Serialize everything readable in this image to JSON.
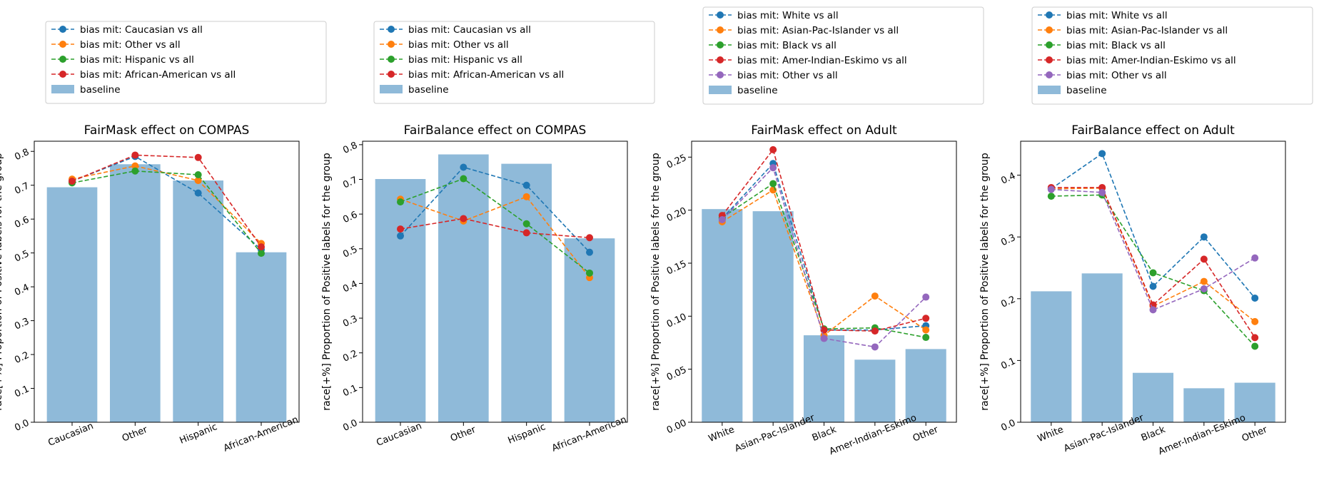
{
  "chart_data": [
    {
      "type": "bar",
      "title": "FairMask effect on COMPAS",
      "xlabel": "",
      "ylabel": "race[+%] Proportion of Positive labels for the group",
      "categories": [
        "Caucasian",
        "Other",
        "Hispanic",
        "African-American"
      ],
      "ylim": [
        0,
        0.83
      ],
      "yticks": [
        "0.0",
        "0.1",
        "0.2",
        "0.3",
        "0.4",
        "0.5",
        "0.6",
        "0.7",
        "0.8"
      ],
      "baseline": {
        "name": "baseline",
        "color": "#8fbad9",
        "values": [
          0.694,
          0.762,
          0.714,
          0.502
        ]
      },
      "series": [
        {
          "name": "bias mit: Caucasian vs all",
          "color": "#1f77b4",
          "values": [
            0.712,
            0.785,
            0.677,
            0.51
          ]
        },
        {
          "name": "bias mit: Other vs all",
          "color": "#ff7f0e",
          "values": [
            0.718,
            0.757,
            0.714,
            0.528
          ]
        },
        {
          "name": "bias mit: Hispanic vs all",
          "color": "#2ca02c",
          "values": [
            0.707,
            0.742,
            0.731,
            0.499
          ]
        },
        {
          "name": "bias mit: African-American vs all",
          "color": "#d62728",
          "values": [
            0.712,
            0.789,
            0.782,
            0.518
          ]
        }
      ],
      "legend_position": "above"
    },
    {
      "type": "bar",
      "title": "FairBalance effect on COMPAS",
      "xlabel": "",
      "ylabel": "race[+%] Proportion of Positive labels for the group",
      "categories": [
        "Caucasian",
        "Other",
        "Hispanic",
        "African-American"
      ],
      "ylim": [
        0,
        0.81
      ],
      "yticks": [
        "0.0",
        "0.1",
        "0.2",
        "0.3",
        "0.4",
        "0.5",
        "0.6",
        "0.7",
        "0.8"
      ],
      "baseline": {
        "name": "baseline",
        "color": "#8fbad9",
        "values": [
          0.701,
          0.772,
          0.745,
          0.53
        ]
      },
      "series": [
        {
          "name": "bias mit: Caucasian vs all",
          "color": "#1f77b4",
          "values": [
            0.537,
            0.735,
            0.683,
            0.49
          ]
        },
        {
          "name": "bias mit: Other vs all",
          "color": "#ff7f0e",
          "values": [
            0.643,
            0.58,
            0.65,
            0.417
          ]
        },
        {
          "name": "bias mit: Hispanic vs all",
          "color": "#2ca02c",
          "values": [
            0.635,
            0.702,
            0.572,
            0.43
          ]
        },
        {
          "name": "bias mit: African-American vs all",
          "color": "#d62728",
          "values": [
            0.557,
            0.587,
            0.546,
            0.532
          ]
        }
      ],
      "legend_position": "above"
    },
    {
      "type": "bar",
      "title": "FairMask effect on Adult",
      "xlabel": "",
      "ylabel": "race[+%] Proportion of Positive labels for the group",
      "categories": [
        "White",
        "Asian-Pac-Islander",
        "Black",
        "Amer-Indian-Eskimo",
        "Other"
      ],
      "ylim": [
        0,
        0.265
      ],
      "yticks": [
        "0.00",
        "0.05",
        "0.10",
        "0.15",
        "0.20",
        "0.25"
      ],
      "baseline": {
        "name": "baseline",
        "color": "#8fbad9",
        "values": [
          0.201,
          0.199,
          0.082,
          0.059,
          0.069
        ]
      },
      "series": [
        {
          "name": "bias mit: White vs all",
          "color": "#1f77b4",
          "values": [
            0.192,
            0.244,
            0.087,
            0.087,
            0.091
          ]
        },
        {
          "name": "bias mit: Asian-Pac-Islander vs all",
          "color": "#ff7f0e",
          "values": [
            0.189,
            0.219,
            0.082,
            0.119,
            0.087
          ]
        },
        {
          "name": "bias mit: Black vs all",
          "color": "#2ca02c",
          "values": [
            0.193,
            0.225,
            0.088,
            0.089,
            0.08
          ]
        },
        {
          "name": "bias mit: Amer-Indian-Eskimo vs all",
          "color": "#d62728",
          "values": [
            0.195,
            0.257,
            0.087,
            0.086,
            0.098
          ]
        },
        {
          "name": "bias mit: Other vs all",
          "color": "#9467bd",
          "values": [
            0.191,
            0.24,
            0.079,
            0.071,
            0.118
          ]
        }
      ],
      "legend_position": "above"
    },
    {
      "type": "bar",
      "title": "FairBalance effect on Adult",
      "xlabel": "",
      "ylabel": "race[+%] Proportion of Positive labels for the group",
      "categories": [
        "White",
        "Asian-Pac-Islander",
        "Black",
        "Amer-Indian-Eskimo",
        "Other"
      ],
      "ylim": [
        0,
        0.455
      ],
      "yticks": [
        "0.0",
        "0.1",
        "0.2",
        "0.3",
        "0.4"
      ],
      "baseline": {
        "name": "baseline",
        "color": "#8fbad9",
        "values": [
          0.212,
          0.241,
          0.08,
          0.055,
          0.064
        ]
      },
      "series": [
        {
          "name": "bias mit: White vs all",
          "color": "#1f77b4",
          "values": [
            0.378,
            0.435,
            0.22,
            0.3,
            0.201
          ]
        },
        {
          "name": "bias mit: Asian-Pac-Islander vs all",
          "color": "#ff7f0e",
          "values": [
            0.378,
            0.379,
            0.188,
            0.228,
            0.163
          ]
        },
        {
          "name": "bias mit: Black vs all",
          "color": "#2ca02c",
          "values": [
            0.366,
            0.368,
            0.242,
            0.213,
            0.123
          ]
        },
        {
          "name": "bias mit: Amer-Indian-Eskimo vs all",
          "color": "#d62728",
          "values": [
            0.38,
            0.38,
            0.19,
            0.264,
            0.137
          ]
        },
        {
          "name": "bias mit: Other vs all",
          "color": "#9467bd",
          "values": [
            0.377,
            0.372,
            0.182,
            0.216,
            0.266
          ]
        }
      ],
      "legend_position": "above"
    }
  ]
}
